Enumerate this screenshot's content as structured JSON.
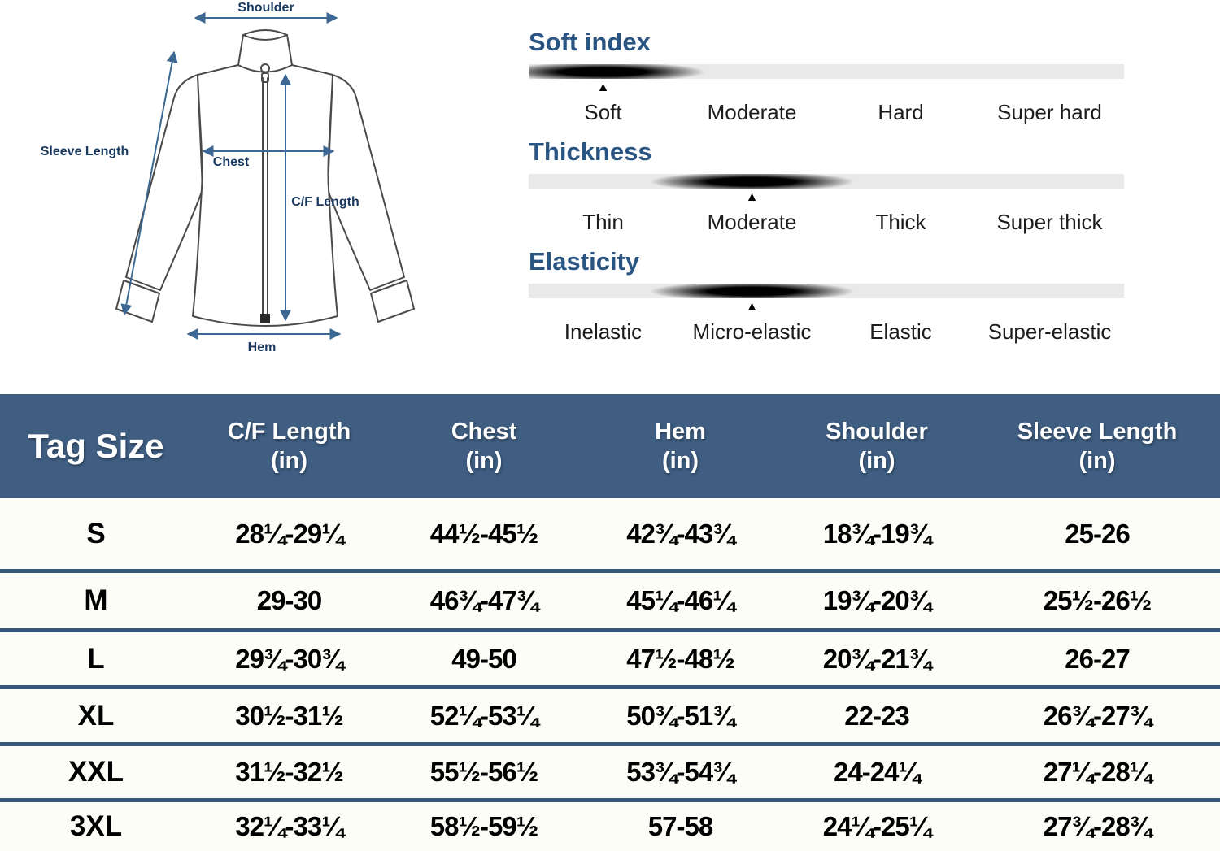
{
  "diagram": {
    "labels": {
      "shoulder": "Shoulder",
      "sleeve_length": "Sleeve Length",
      "chest": "Chest",
      "cf_length": "C/F Length",
      "hem": "Hem"
    }
  },
  "icons": {
    "triangle_up": "▲"
  },
  "meters": [
    {
      "title": "Soft index",
      "labels": [
        "Soft",
        "Moderate",
        "Hard",
        "Super hard"
      ],
      "selected": "Soft",
      "pointer_percent": 12.5
    },
    {
      "title": "Thickness",
      "labels": [
        "Thin",
        "Moderate",
        "Thick",
        "Super thick"
      ],
      "selected": "Moderate",
      "pointer_percent": 37.5
    },
    {
      "title": "Elasticity",
      "labels": [
        "Inelastic",
        "Micro-elastic",
        "Elastic",
        "Super-elastic"
      ],
      "selected": "Micro-elastic",
      "pointer_percent": 37.5
    }
  ],
  "size_table": {
    "headers": [
      {
        "label": "Tag Size",
        "unit": ""
      },
      {
        "label": "C/F Length",
        "unit": "(in)"
      },
      {
        "label": "Chest",
        "unit": "(in)"
      },
      {
        "label": "Hem",
        "unit": "(in)"
      },
      {
        "label": "Shoulder",
        "unit": "(in)"
      },
      {
        "label": "Sleeve Length",
        "unit": "(in)"
      }
    ],
    "rows": [
      {
        "size": "S",
        "values": [
          "28¼-29¼",
          "44½-45½",
          "42¾-43¾",
          "18¾-19¾",
          "25-26"
        ]
      },
      {
        "size": "M",
        "values": [
          "29-30",
          "46¾-47¾",
          "45¼-46¼",
          "19¾-20¾",
          "25½-26½"
        ]
      },
      {
        "size": "L",
        "values": [
          "29¾-30¾",
          "49-50",
          "47½-48½",
          "20¾-21¾",
          "26-27"
        ]
      },
      {
        "size": "XL",
        "values": [
          "30½-31½",
          "52¼-53¼",
          "50¾-51¾",
          "22-23",
          "26¾-27¾"
        ]
      },
      {
        "size": "XXL",
        "values": [
          "31½-32½",
          "55½-56½",
          "53¾-54¾",
          "24-24¼",
          "27¼-28¼"
        ]
      },
      {
        "size": "3XL",
        "values": [
          "32¼-33¼",
          "58½-59½",
          "57-58",
          "24¼-25¼",
          "27¾-28¾"
        ]
      }
    ]
  },
  "colors": {
    "header_bg": "#3f5e82",
    "row_separator": "#35587a",
    "meter_title": "#2a5583",
    "meter_bar_bg": "#e9e9e9",
    "diagram_label": "#17375e",
    "arrow": "#3c6893",
    "row_bg": "#fdfdf8"
  }
}
